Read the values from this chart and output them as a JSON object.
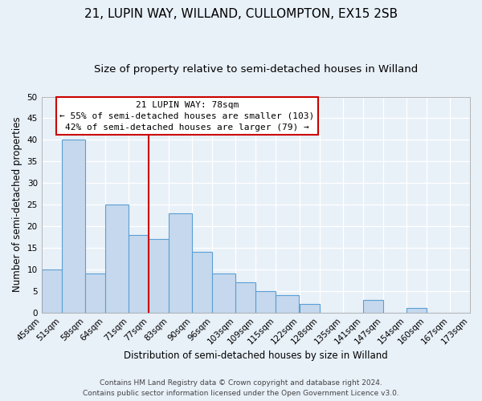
{
  "title": "21, LUPIN WAY, WILLAND, CULLOMPTON, EX15 2SB",
  "subtitle": "Size of property relative to semi-detached houses in Willand",
  "xlabel": "Distribution of semi-detached houses by size in Willand",
  "ylabel": "Number of semi-detached properties",
  "footer_line1": "Contains HM Land Registry data © Crown copyright and database right 2024.",
  "footer_line2": "Contains public sector information licensed under the Open Government Licence v3.0.",
  "bins": [
    45,
    51,
    58,
    64,
    71,
    77,
    83,
    90,
    96,
    103,
    109,
    115,
    122,
    128,
    135,
    141,
    147,
    154,
    160,
    167,
    173
  ],
  "bin_labels": [
    "45sqm",
    "51sqm",
    "58sqm",
    "64sqm",
    "71sqm",
    "77sqm",
    "83sqm",
    "90sqm",
    "96sqm",
    "103sqm",
    "109sqm",
    "115sqm",
    "122sqm",
    "128sqm",
    "135sqm",
    "141sqm",
    "147sqm",
    "154sqm",
    "160sqm",
    "167sqm",
    "173sqm"
  ],
  "values": [
    10,
    40,
    9,
    25,
    18,
    17,
    23,
    14,
    9,
    7,
    5,
    4,
    2,
    0,
    0,
    3,
    0,
    1,
    0,
    0
  ],
  "bar_color": "#c5d8ed",
  "bar_edge_color": "#5a9fd4",
  "background_color": "#e8f0f8",
  "grid_color": "#ffffff",
  "ylim": [
    0,
    50
  ],
  "yticks": [
    0,
    5,
    10,
    15,
    20,
    25,
    30,
    35,
    40,
    45,
    50
  ],
  "vline_x": 77,
  "vline_color": "#cc0000",
  "annotation_title": "21 LUPIN WAY: 78sqm",
  "annotation_line1": "← 55% of semi-detached houses are smaller (103)",
  "annotation_line2": "42% of semi-detached houses are larger (79) →",
  "annotation_box_color": "#ffffff",
  "annotation_box_edge": "#cc0000",
  "title_fontsize": 11,
  "subtitle_fontsize": 9.5,
  "label_fontsize": 8.5,
  "tick_fontsize": 7.5,
  "footer_fontsize": 6.5,
  "annot_fontsize": 8.0
}
